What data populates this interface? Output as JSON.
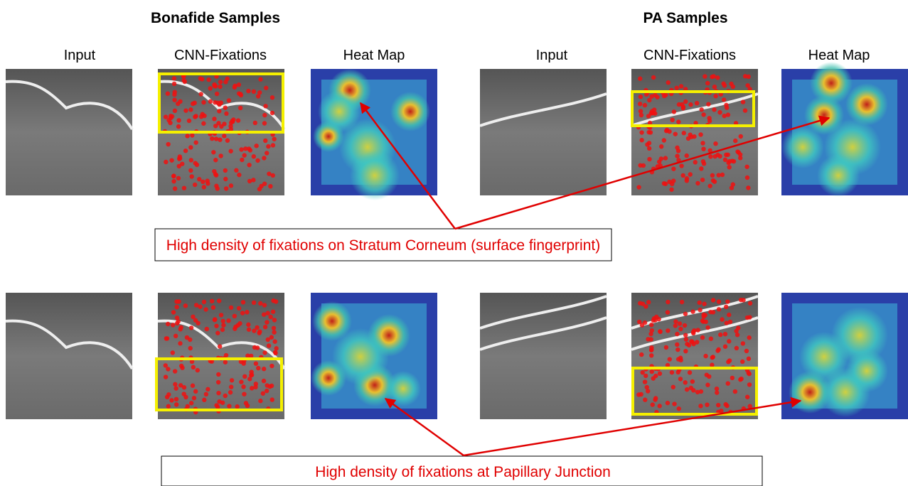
{
  "groups": [
    {
      "title": "Bonafide Samples",
      "columns": [
        "Input",
        "CNN-Fixations",
        "Heat Map"
      ]
    },
    {
      "title": "PA Samples",
      "columns": [
        "Input",
        "CNN-Fixations",
        "Heat Map"
      ]
    }
  ],
  "annotations": [
    "High density of fixations on Stratum Corneum (surface fingerprint)",
    "High density of fixations at Papillary Junction"
  ]
}
